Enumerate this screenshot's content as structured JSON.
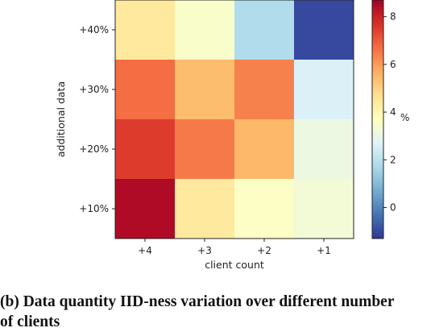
{
  "chart_data": {
    "type": "heatmap",
    "x_categories": [
      "+4",
      "+3",
      "+2",
      "+1"
    ],
    "y_categories": [
      "+40%",
      "+30%",
      "+20%",
      "+10%"
    ],
    "values": [
      [
        4.4,
        3.5,
        1.8,
        -1.0
      ],
      [
        6.7,
        5.4,
        6.4,
        2.6
      ],
      [
        7.5,
        6.5,
        5.5,
        3.1
      ],
      [
        8.5,
        4.4,
        3.6,
        3.3
      ]
    ],
    "xlabel": "client count",
    "ylabel": "additional data",
    "colorbar": {
      "label": "%",
      "range": [
        -1.3,
        8.7
      ],
      "ticks": [
        0,
        2,
        4,
        6,
        8
      ],
      "colormap": "RdYlBu_r"
    },
    "grid": false
  },
  "caption": {
    "line1": "(b) Data quantity IID-ness variation over different number",
    "line2": "of clients"
  }
}
